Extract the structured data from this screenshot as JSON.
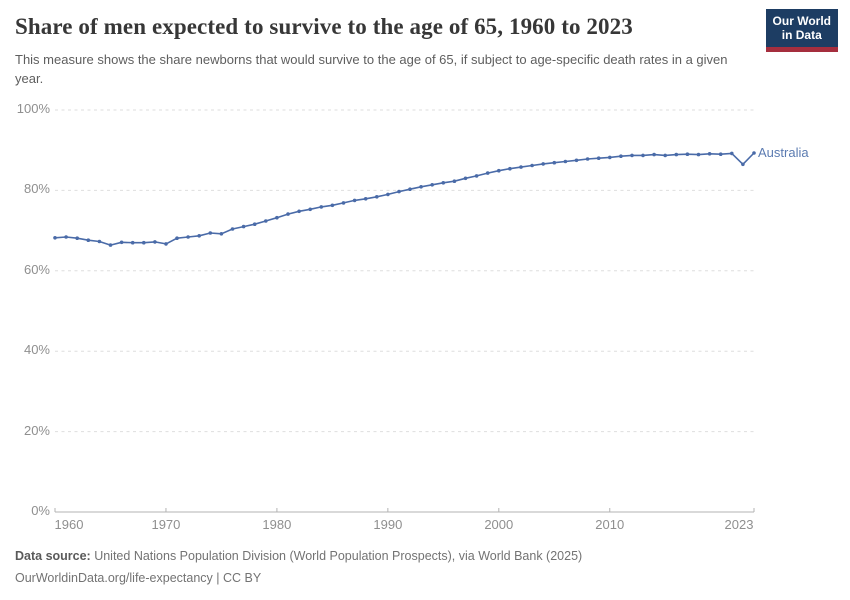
{
  "header": {
    "title": "Share of men expected to survive to the age of 65, 1960 to 2023",
    "subtitle": "This measure shows the share newborns that would survive to the age of 65, if subject to age-specific death rates in a given year."
  },
  "logo": {
    "line1": "Our World",
    "line2": "in Data",
    "background": "#1d3d63",
    "accent": "#a52e3e"
  },
  "chart_data": {
    "type": "line",
    "title": "Share of men expected to survive to the age of 65, 1960 to 2023",
    "xlabel": "",
    "ylabel": "",
    "xlim": [
      1960,
      2023
    ],
    "ylim": [
      0,
      100
    ],
    "grid": "dashed-horizontal",
    "legend_position": "end-of-line",
    "x": [
      1960,
      1961,
      1962,
      1963,
      1964,
      1965,
      1966,
      1967,
      1968,
      1969,
      1970,
      1971,
      1972,
      1973,
      1974,
      1975,
      1976,
      1977,
      1978,
      1979,
      1980,
      1981,
      1982,
      1983,
      1984,
      1985,
      1986,
      1987,
      1988,
      1989,
      1990,
      1991,
      1992,
      1993,
      1994,
      1995,
      1996,
      1997,
      1998,
      1999,
      2000,
      2001,
      2002,
      2003,
      2004,
      2005,
      2006,
      2007,
      2008,
      2009,
      2010,
      2011,
      2012,
      2013,
      2014,
      2015,
      2016,
      2017,
      2018,
      2019,
      2020,
      2021,
      2022,
      2023
    ],
    "series": [
      {
        "name": "Australia",
        "color": "#4a6ba8",
        "values": [
          68.2,
          68.4,
          68.1,
          67.6,
          67.3,
          66.4,
          67.1,
          67.0,
          67.0,
          67.2,
          66.7,
          68.1,
          68.4,
          68.7,
          69.4,
          69.2,
          70.4,
          71.0,
          71.6,
          72.4,
          73.2,
          74.1,
          74.8,
          75.3,
          75.9,
          76.3,
          76.9,
          77.5,
          77.9,
          78.4,
          79.0,
          79.7,
          80.3,
          80.9,
          81.4,
          81.9,
          82.3,
          83.0,
          83.6,
          84.3,
          84.9,
          85.4,
          85.8,
          86.2,
          86.6,
          86.9,
          87.2,
          87.5,
          87.8,
          88.0,
          88.2,
          88.5,
          88.7,
          88.7,
          88.9,
          88.7,
          88.9,
          89.0,
          88.9,
          89.1,
          89.0,
          89.2,
          86.5,
          89.3
        ]
      }
    ],
    "y_ticks": [
      {
        "value": 0,
        "label": "0%"
      },
      {
        "value": 20,
        "label": "20%"
      },
      {
        "value": 40,
        "label": "40%"
      },
      {
        "value": 60,
        "label": "60%"
      },
      {
        "value": 80,
        "label": "80%"
      },
      {
        "value": 100,
        "label": "100%"
      }
    ],
    "x_ticks": [
      {
        "value": 1960,
        "label": "1960"
      },
      {
        "value": 1970,
        "label": "1970"
      },
      {
        "value": 1980,
        "label": "1980"
      },
      {
        "value": 1990,
        "label": "1990"
      },
      {
        "value": 2000,
        "label": "2000"
      },
      {
        "value": 2010,
        "label": "2010"
      },
      {
        "value": 2023,
        "label": "2023"
      }
    ]
  },
  "colors": {
    "grid": "#dedede",
    "axis": "#b3b3b3",
    "tick_text": "#8f8f8f",
    "series_label": "#5b7bb1"
  },
  "footer": {
    "source_label": "Data source:",
    "source_text": " United Nations Population Division (World Population Prospects), via World Bank (2025)",
    "link_line": "OurWorldinData.org/life-expectancy | CC BY"
  }
}
